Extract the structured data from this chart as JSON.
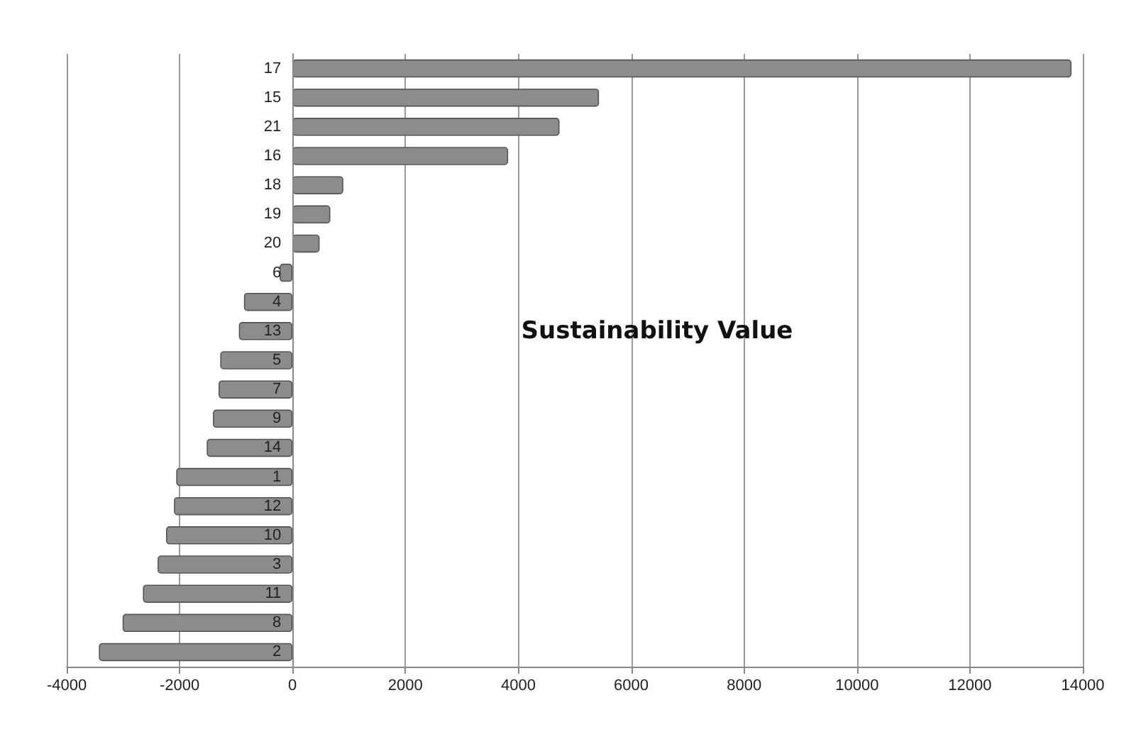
{
  "chart_data": {
    "type": "bar",
    "orientation": "horizontal",
    "title": "Sustainability Value",
    "categories": [
      "17",
      "15",
      "21",
      "16",
      "18",
      "19",
      "20",
      "6",
      "4",
      "13",
      "5",
      "7",
      "9",
      "14",
      "1",
      "12",
      "10",
      "3",
      "11",
      "8",
      "2"
    ],
    "values": [
      13800,
      5430,
      4730,
      3820,
      900,
      670,
      480,
      -230,
      -860,
      -950,
      -1280,
      -1310,
      -1410,
      -1520,
      -2060,
      -2100,
      -2240,
      -2390,
      -2650,
      -3010,
      -3430
    ],
    "color": "#8c8c8c",
    "xlim": [
      -4000,
      14000
    ],
    "xticks": [
      -4000,
      -2000,
      0,
      2000,
      4000,
      6000,
      8000,
      10000,
      12000,
      14000
    ],
    "grid": "x"
  }
}
